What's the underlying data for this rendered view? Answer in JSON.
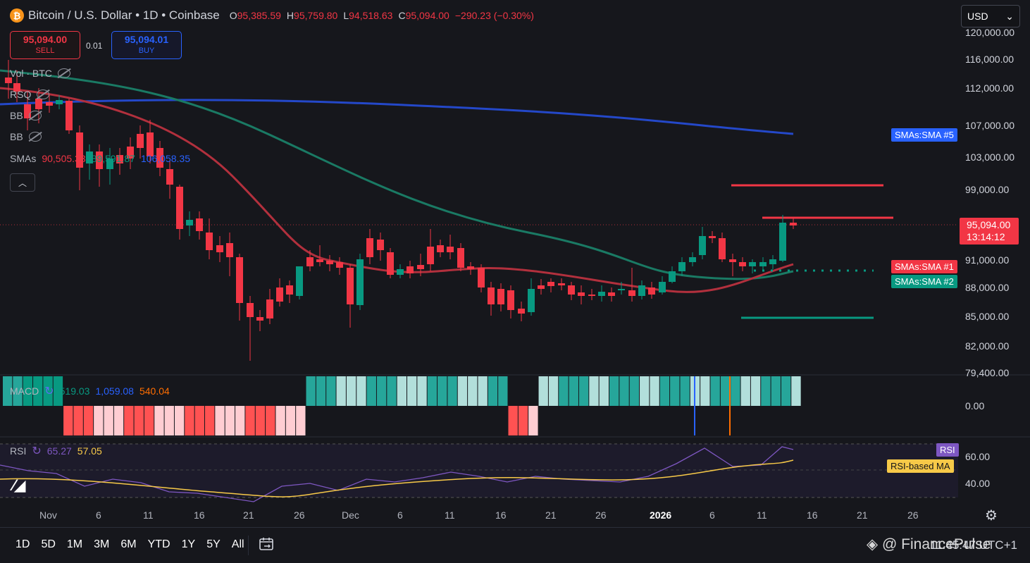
{
  "header": {
    "coin_symbol": "₿",
    "title": "Bitcoin / U.S. Dollar • 1D • Coinbase",
    "ohlc": [
      {
        "k": "O",
        "v": "95,385.59"
      },
      {
        "k": "H",
        "v": "95,759.80"
      },
      {
        "k": "L",
        "v": "94,518.63"
      },
      {
        "k": "C",
        "v": "95,094.00"
      }
    ],
    "change": "−290.23 (−0.30%)"
  },
  "trade": {
    "sell_price": "95,094.00",
    "sell_label": "SELL",
    "spread": "0.01",
    "buy_price": "95,094.01",
    "buy_label": "BUY"
  },
  "currency": {
    "selected": "USD"
  },
  "indicators": {
    "vol": "Vol · BTC",
    "ind2": "RSQ",
    "bb1": "BB",
    "bb2": "BB",
    "smas_label": "SMAs",
    "smas_values": [
      {
        "v": "90,505.33",
        "color": "#f23645"
      },
      {
        "v": "89,591.87",
        "color": "#089981"
      },
      {
        "v": "106,058.35",
        "color": "#2962ff"
      }
    ]
  },
  "price_axis": [
    "120,000.00",
    "116,000.00",
    "112,000.00",
    "107,000.00",
    "103,000.00",
    "99,000.00",
    "95,094.00",
    "91,000.00",
    "88,000.00",
    "85,000.00",
    "82,000.00",
    "79,400.00"
  ],
  "last_price": {
    "price": "95,094.00",
    "countdown": "13:14:12"
  },
  "sma_tags": {
    "sma5": "SMAs:SMA #5",
    "sma1": "SMAs:SMA #1",
    "sma2": "SMAs:SMA #2"
  },
  "macd": {
    "label": "MACD",
    "v1": "519.03",
    "v2": "1,059.08",
    "v3": "540.04",
    "zero": "0.00"
  },
  "rsi": {
    "label": "RSI",
    "v1": "65.27",
    "v2": "57.05",
    "axis": [
      "60.00",
      "40.00"
    ],
    "tag_rsi": "RSI",
    "tag_ma": "RSI-based MA"
  },
  "time_axis": [
    "Nov",
    "6",
    "11",
    "16",
    "21",
    "26",
    "Dec",
    "6",
    "11",
    "16",
    "21",
    "26",
    "2026",
    "6",
    "11",
    "16",
    "21",
    "26"
  ],
  "timeframes": [
    "1D",
    "5D",
    "1M",
    "3M",
    "6M",
    "YTD",
    "1Y",
    "5Y",
    "All"
  ],
  "footer": {
    "watermark": "@ FinancePulse",
    "time": "11:45:47 UTC+1"
  },
  "colors": {
    "bull": "#089981",
    "bear": "#f23645",
    "sma1": "#b2303d",
    "sma2": "#1a7a64",
    "sma5": "#2448c9",
    "rsi": "#7e57c2",
    "rsi_ma": "#f7c948"
  },
  "icons": {
    "settings": "gear-icon",
    "calendar": "calendar-range-icon",
    "logo": "tradingview-logo-icon"
  }
}
